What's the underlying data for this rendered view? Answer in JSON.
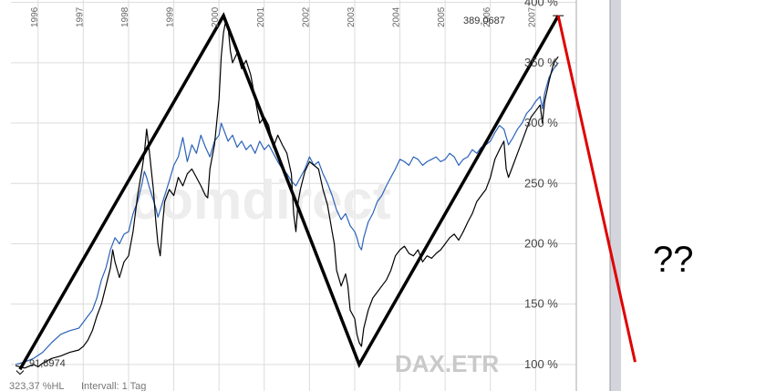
{
  "chart_data": {
    "type": "line",
    "symbol": "DAX.ETR",
    "watermark": "comdirect",
    "annotation_question": "??",
    "x_ticks": [
      "1996",
      "1997",
      "1998",
      "1999",
      "2000",
      "2001",
      "2002",
      "2003",
      "2004",
      "2005",
      "2006",
      "2007"
    ],
    "y_ticks": [
      "100 %",
      "150 %",
      "200 %",
      "250 %",
      "300 %",
      "350 %",
      "400 %"
    ],
    "ylim": [
      78,
      402
    ],
    "xlim": [
      1995.4,
      2007.9
    ],
    "high_label": "389,0687",
    "low_label": "91,8974",
    "footer": {
      "range_text": "323,37 %HL",
      "interval_text": "Intervall: 1 Tag"
    },
    "grid": true,
    "colors": {
      "dax": "#000000",
      "comparison": "#2a62b8",
      "trendline": "#000000",
      "forecast": "#e00000",
      "grid": "#dcdcdc",
      "separator": "#d4d4dc"
    },
    "series": [
      {
        "points": [
          [
            1995.5,
            99
          ],
          [
            1995.7,
            97
          ],
          [
            1995.9,
            100
          ],
          [
            1996.0,
            98
          ],
          [
            1996.1,
            101
          ],
          [
            1996.3,
            105
          ],
          [
            1996.5,
            107
          ],
          [
            1996.7,
            110
          ],
          [
            1996.9,
            112
          ],
          [
            1997.0,
            115
          ],
          [
            1997.1,
            120
          ],
          [
            1997.2,
            128
          ],
          [
            1997.3,
            140
          ],
          [
            1997.4,
            150
          ],
          [
            1997.5,
            165
          ],
          [
            1997.6,
            180
          ],
          [
            1997.65,
            195
          ],
          [
            1997.7,
            185
          ],
          [
            1997.8,
            172
          ],
          [
            1997.9,
            185
          ],
          [
            1998.0,
            190
          ],
          [
            1998.1,
            210
          ],
          [
            1998.2,
            240
          ],
          [
            1998.3,
            262
          ],
          [
            1998.35,
            275
          ],
          [
            1998.4,
            295
          ],
          [
            1998.45,
            280
          ],
          [
            1998.5,
            262
          ],
          [
            1998.55,
            245
          ],
          [
            1998.6,
            220
          ],
          [
            1998.65,
            200
          ],
          [
            1998.7,
            190
          ],
          [
            1998.75,
            215
          ],
          [
            1998.8,
            235
          ],
          [
            1998.9,
            245
          ],
          [
            1999.0,
            240
          ],
          [
            1999.1,
            255
          ],
          [
            1999.2,
            248
          ],
          [
            1999.3,
            258
          ],
          [
            1999.4,
            262
          ],
          [
            1999.5,
            255
          ],
          [
            1999.6,
            248
          ],
          [
            1999.7,
            240
          ],
          [
            1999.75,
            238
          ],
          [
            1999.8,
            262
          ],
          [
            1999.9,
            282
          ],
          [
            2000.0,
            320
          ],
          [
            2000.05,
            355
          ],
          [
            2000.1,
            375
          ],
          [
            2000.15,
            385
          ],
          [
            2000.2,
            380
          ],
          [
            2000.25,
            360
          ],
          [
            2000.3,
            350
          ],
          [
            2000.4,
            358
          ],
          [
            2000.5,
            345
          ],
          [
            2000.6,
            352
          ],
          [
            2000.7,
            340
          ],
          [
            2000.8,
            320
          ],
          [
            2000.9,
            300
          ],
          [
            2001.0,
            305
          ],
          [
            2001.1,
            298
          ],
          [
            2001.2,
            280
          ],
          [
            2001.3,
            290
          ],
          [
            2001.4,
            282
          ],
          [
            2001.5,
            275
          ],
          [
            2001.6,
            258
          ],
          [
            2001.65,
            225
          ],
          [
            2001.7,
            210
          ],
          [
            2001.75,
            235
          ],
          [
            2001.8,
            245
          ],
          [
            2001.9,
            260
          ],
          [
            2002.0,
            268
          ],
          [
            2002.1,
            265
          ],
          [
            2002.2,
            262
          ],
          [
            2002.3,
            245
          ],
          [
            2002.4,
            232
          ],
          [
            2002.5,
            210
          ],
          [
            2002.55,
            200
          ],
          [
            2002.6,
            178
          ],
          [
            2002.7,
            165
          ],
          [
            2002.8,
            175
          ],
          [
            2002.85,
            165
          ],
          [
            2002.9,
            145
          ],
          [
            2003.0,
            138
          ],
          [
            2003.05,
            125
          ],
          [
            2003.1,
            118
          ],
          [
            2003.15,
            115
          ],
          [
            2003.2,
            130
          ],
          [
            2003.3,
            145
          ],
          [
            2003.4,
            155
          ],
          [
            2003.5,
            160
          ],
          [
            2003.6,
            165
          ],
          [
            2003.7,
            170
          ],
          [
            2003.8,
            178
          ],
          [
            2003.9,
            190
          ],
          [
            2004.0,
            195
          ],
          [
            2004.1,
            198
          ],
          [
            2004.2,
            192
          ],
          [
            2004.3,
            190
          ],
          [
            2004.4,
            195
          ],
          [
            2004.5,
            185
          ],
          [
            2004.6,
            190
          ],
          [
            2004.7,
            188
          ],
          [
            2004.8,
            192
          ],
          [
            2004.9,
            195
          ],
          [
            2005.0,
            200
          ],
          [
            2005.1,
            205
          ],
          [
            2005.2,
            208
          ],
          [
            2005.3,
            203
          ],
          [
            2005.4,
            210
          ],
          [
            2005.5,
            218
          ],
          [
            2005.6,
            225
          ],
          [
            2005.7,
            235
          ],
          [
            2005.8,
            240
          ],
          [
            2005.9,
            245
          ],
          [
            2006.0,
            255
          ],
          [
            2006.1,
            270
          ],
          [
            2006.2,
            278
          ],
          [
            2006.3,
            285
          ],
          [
            2006.35,
            262
          ],
          [
            2006.4,
            255
          ],
          [
            2006.5,
            265
          ],
          [
            2006.6,
            275
          ],
          [
            2006.7,
            285
          ],
          [
            2006.8,
            295
          ],
          [
            2006.9,
            305
          ],
          [
            2007.0,
            310
          ],
          [
            2007.1,
            315
          ],
          [
            2007.15,
            300
          ],
          [
            2007.2,
            318
          ],
          [
            2007.3,
            335
          ],
          [
            2007.4,
            350
          ],
          [
            2007.5,
            355
          ]
        ]
      },
      {
        "points": [
          [
            1995.5,
            100
          ],
          [
            1995.7,
            102
          ],
          [
            1995.9,
            105
          ],
          [
            1996.1,
            110
          ],
          [
            1996.3,
            118
          ],
          [
            1996.5,
            125
          ],
          [
            1996.7,
            128
          ],
          [
            1996.9,
            130
          ],
          [
            1997.0,
            135
          ],
          [
            1997.1,
            140
          ],
          [
            1997.2,
            145
          ],
          [
            1997.3,
            155
          ],
          [
            1997.4,
            170
          ],
          [
            1997.5,
            180
          ],
          [
            1997.6,
            195
          ],
          [
            1997.7,
            205
          ],
          [
            1997.8,
            200
          ],
          [
            1997.9,
            208
          ],
          [
            1998.0,
            210
          ],
          [
            1998.1,
            225
          ],
          [
            1998.2,
            235
          ],
          [
            1998.3,
            250
          ],
          [
            1998.35,
            260
          ],
          [
            1998.4,
            255
          ],
          [
            1998.45,
            248
          ],
          [
            1998.5,
            242
          ],
          [
            1998.6,
            230
          ],
          [
            1998.65,
            222
          ],
          [
            1998.7,
            228
          ],
          [
            1998.8,
            240
          ],
          [
            1998.9,
            252
          ],
          [
            1999.0,
            265
          ],
          [
            1999.1,
            272
          ],
          [
            1999.2,
            288
          ],
          [
            1999.3,
            268
          ],
          [
            1999.4,
            282
          ],
          [
            1999.5,
            275
          ],
          [
            1999.6,
            290
          ],
          [
            1999.7,
            280
          ],
          [
            1999.8,
            272
          ],
          [
            1999.9,
            285
          ],
          [
            2000.0,
            290
          ],
          [
            2000.05,
            300
          ],
          [
            2000.1,
            295
          ],
          [
            2000.2,
            285
          ],
          [
            2000.3,
            290
          ],
          [
            2000.4,
            280
          ],
          [
            2000.5,
            285
          ],
          [
            2000.6,
            278
          ],
          [
            2000.7,
            282
          ],
          [
            2000.8,
            275
          ],
          [
            2000.9,
            285
          ],
          [
            2001.0,
            278
          ],
          [
            2001.1,
            282
          ],
          [
            2001.2,
            275
          ],
          [
            2001.3,
            268
          ],
          [
            2001.4,
            262
          ],
          [
            2001.5,
            258
          ],
          [
            2001.6,
            252
          ],
          [
            2001.7,
            248
          ],
          [
            2001.8,
            255
          ],
          [
            2001.9,
            262
          ],
          [
            2002.0,
            272
          ],
          [
            2002.1,
            265
          ],
          [
            2002.2,
            268
          ],
          [
            2002.3,
            258
          ],
          [
            2002.4,
            250
          ],
          [
            2002.5,
            240
          ],
          [
            2002.6,
            228
          ],
          [
            2002.7,
            220
          ],
          [
            2002.8,
            225
          ],
          [
            2002.9,
            215
          ],
          [
            2003.0,
            210
          ],
          [
            2003.05,
            205
          ],
          [
            2003.1,
            198
          ],
          [
            2003.15,
            195
          ],
          [
            2003.2,
            205
          ],
          [
            2003.3,
            218
          ],
          [
            2003.4,
            225
          ],
          [
            2003.5,
            235
          ],
          [
            2003.6,
            240
          ],
          [
            2003.7,
            248
          ],
          [
            2003.8,
            255
          ],
          [
            2003.9,
            262
          ],
          [
            2004.0,
            270
          ],
          [
            2004.1,
            268
          ],
          [
            2004.2,
            265
          ],
          [
            2004.3,
            272
          ],
          [
            2004.4,
            270
          ],
          [
            2004.5,
            265
          ],
          [
            2004.6,
            268
          ],
          [
            2004.7,
            270
          ],
          [
            2004.8,
            272
          ],
          [
            2004.9,
            268
          ],
          [
            2005.0,
            270
          ],
          [
            2005.1,
            275
          ],
          [
            2005.2,
            272
          ],
          [
            2005.3,
            265
          ],
          [
            2005.4,
            270
          ],
          [
            2005.5,
            272
          ],
          [
            2005.6,
            278
          ],
          [
            2005.7,
            275
          ],
          [
            2005.8,
            280
          ],
          [
            2005.9,
            282
          ],
          [
            2006.0,
            285
          ],
          [
            2006.1,
            292
          ],
          [
            2006.2,
            298
          ],
          [
            2006.3,
            295
          ],
          [
            2006.4,
            282
          ],
          [
            2006.5,
            288
          ],
          [
            2006.6,
            295
          ],
          [
            2006.7,
            300
          ],
          [
            2006.8,
            308
          ],
          [
            2006.9,
            312
          ],
          [
            2007.0,
            318
          ],
          [
            2007.1,
            322
          ],
          [
            2007.15,
            312
          ],
          [
            2007.2,
            325
          ],
          [
            2007.3,
            338
          ],
          [
            2007.4,
            345
          ],
          [
            2007.5,
            350
          ]
        ]
      }
    ],
    "trendline": [
      [
        1995.6,
        96
      ],
      [
        2000.1,
        389
      ],
      [
        2003.1,
        100
      ],
      [
        2007.5,
        389
      ]
    ],
    "forecast_line": [
      [
        2007.5,
        389
      ],
      [
        2009.2,
        102
      ]
    ]
  }
}
